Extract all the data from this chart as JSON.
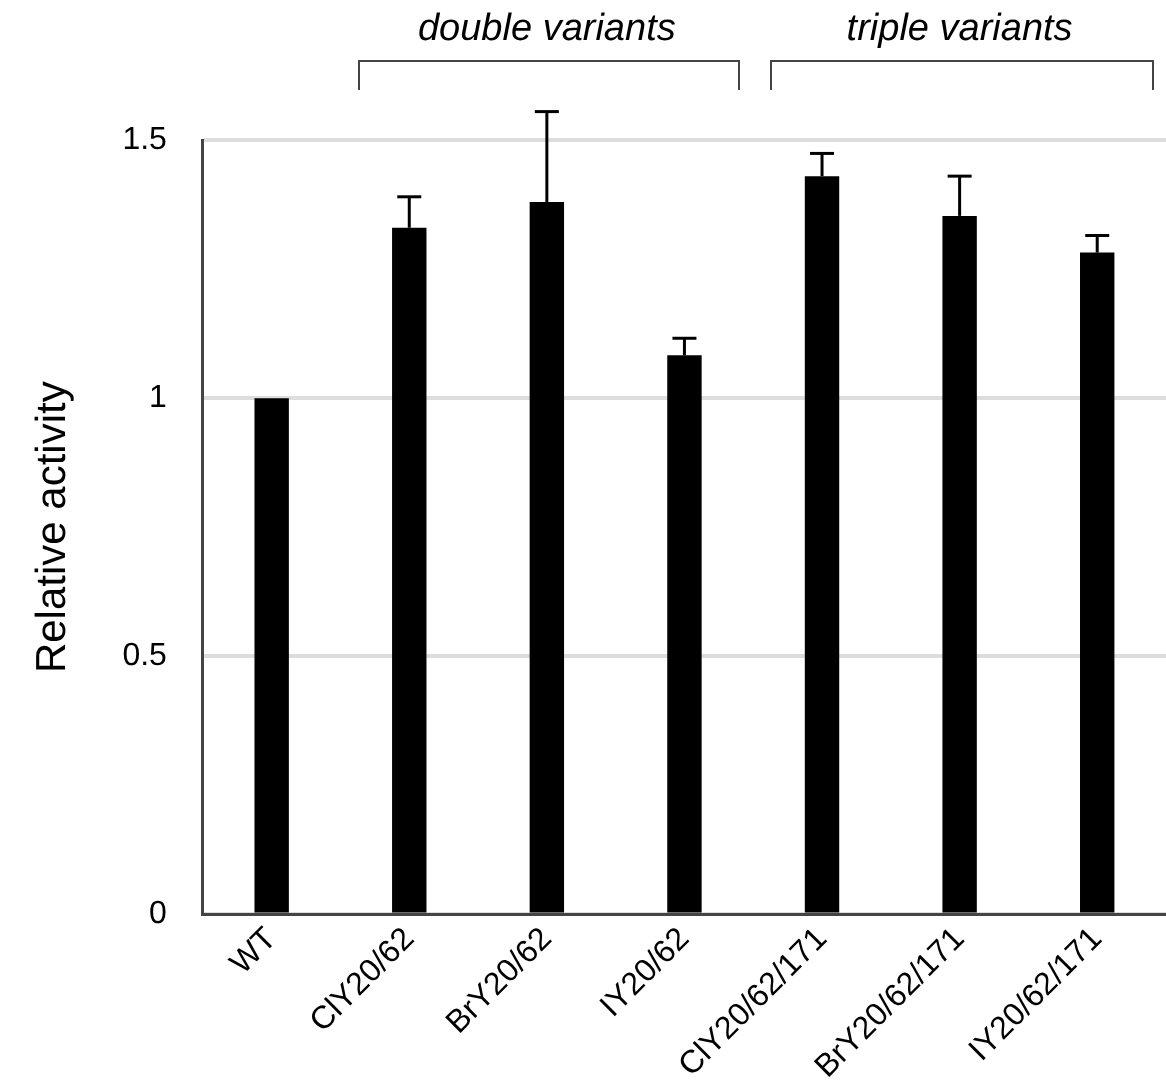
{
  "chart_data": {
    "type": "bar",
    "ylabel": "Relative activity",
    "categories": [
      "WT",
      "ClY20/62",
      "BrY20/62",
      "IY20/62",
      "ClY20/62/171",
      "BrY20/62/171",
      "IY20/62/171"
    ],
    "values": [
      1.0,
      1.33,
      1.38,
      1.083,
      1.43,
      1.353,
      1.282
    ],
    "errors": [
      null,
      [
        1.33,
        1.39
      ],
      [
        1.38,
        1.555
      ],
      [
        1.083,
        1.116
      ],
      [
        1.43,
        1.474
      ],
      [
        1.353,
        1.43
      ],
      [
        1.282,
        1.315
      ]
    ],
    "color": "#000000",
    "ylim": [
      0,
      1.5
    ],
    "yticks": [
      0,
      0.5,
      1,
      1.5
    ],
    "grid": "y",
    "annotations": [
      "double variants",
      "triple variants"
    ]
  }
}
